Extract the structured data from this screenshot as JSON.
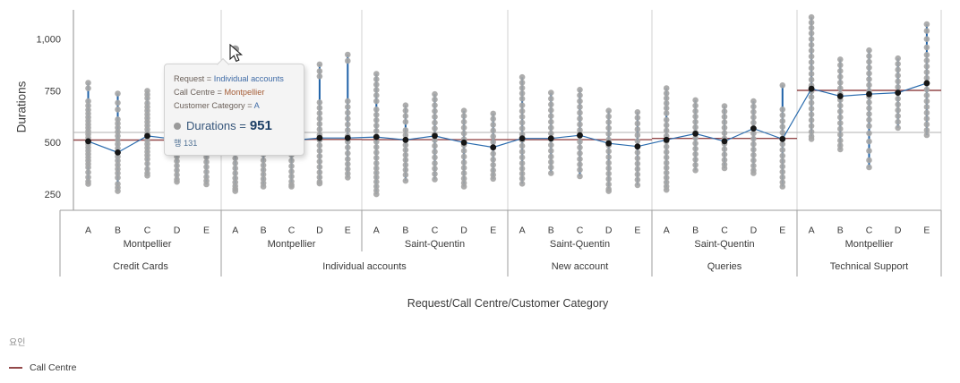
{
  "chart_data": {
    "type": "scatter",
    "variant": "hierarchical-strip-plot-with-factor-lines",
    "title": "",
    "ylabel": "Durations",
    "xlabel": "Request/Call Centre/Customer Category",
    "y_ticks": [
      250,
      500,
      750,
      1000
    ],
    "y_tick_labels": [
      "250",
      "500",
      "750",
      "1,000"
    ],
    "ylim": [
      170,
      1145
    ],
    "grid": false,
    "reference_line_value": 549,
    "hierarchy_levels": [
      "Customer Category",
      "Call Centre",
      "Request"
    ],
    "groups": [
      {
        "request": "Credit Cards",
        "call_centre": "Montpellier",
        "factor_line": 512,
        "columns": [
          {
            "category": "A",
            "mean": 506,
            "points": [
              789,
              762,
              700,
              678,
              658,
              640,
              622,
              605,
              588,
              572,
              556,
              540,
              524,
              508,
              492,
              476,
              460,
              444,
              428,
              412,
              396,
              380,
              356,
              332,
              312,
              300
            ]
          },
          {
            "category": "B",
            "mean": 452,
            "points": [
              737,
              692,
              660,
              612,
              592,
              572,
              552,
              532,
              512,
              492,
              472,
              452,
              432,
              412,
              392,
              372,
              352,
              330,
              300,
              282,
              265
            ]
          },
          {
            "category": "C",
            "mean": 532,
            "points": [
              750,
              732,
              714,
              690,
              672,
              654,
              636,
              618,
              600,
              582,
              564,
              546,
              528,
              510,
              492,
              474,
              456,
              438,
              420,
              398,
              372,
              352,
              340
            ]
          },
          {
            "category": "D",
            "mean": 515,
            "line": [
              310,
              700
            ],
            "points": [
              700,
              672,
              648,
              624,
              600,
              576,
              552,
              528,
              504,
              480,
              456,
              432,
              410,
              388,
              366,
              344,
              322,
              310
            ]
          },
          {
            "category": "E",
            "mean": 521,
            "line": [
              298,
              760
            ],
            "points": [
              760,
              730,
              700,
              670,
              640,
              612,
              586,
              560,
              534,
              508,
              482,
              456,
              430,
              406,
              382,
              358,
              334,
              315,
              298
            ]
          }
        ]
      },
      {
        "request": "Individual accounts",
        "call_centre": "Montpellier",
        "factor_line": 515,
        "columns": [
          {
            "category": "A",
            "mean": 512,
            "line": [
              265,
              700
            ],
            "points": [
              951,
              640,
              616,
              592,
              568,
              544,
              520,
              496,
              472,
              448,
              424,
              400,
              376,
              352,
              328,
              308,
              290,
              276,
              265
            ]
          },
          {
            "category": "B",
            "mean": 505,
            "line": [
              287,
              820
            ],
            "points": [
              820,
              780,
              640,
              610,
              582,
              554,
              526,
              498,
              470,
              442,
              414,
              390,
              368,
              346,
              324,
              304,
              287
            ]
          },
          {
            "category": "C",
            "mean": 510,
            "line": [
              287,
              840
            ],
            "points": [
              840,
              800,
              760,
              650,
              620,
              590,
              560,
              530,
              500,
              470,
              440,
              412,
              386,
              360,
              336,
              312,
              295,
              287
            ]
          },
          {
            "category": "D",
            "mean": 522,
            "points": [
              878,
              845,
              820,
              694,
              668,
              642,
              616,
              590,
              564,
              538,
              512,
              486,
              460,
              434,
              408,
              382,
              356,
              332,
              310,
              302
            ]
          },
          {
            "category": "E",
            "mean": 522,
            "points": [
              925,
              895,
              700,
              672,
              644,
              616,
              588,
              560,
              532,
              504,
              476,
              448,
              420,
              396,
              372,
              350,
              331
            ]
          }
        ]
      },
      {
        "request": "Individual accounts",
        "call_centre": "Saint-Quentin",
        "factor_line": 514,
        "columns": [
          {
            "category": "A",
            "mean": 527,
            "points": [
              832,
              806,
              780,
              754,
              728,
              700,
              660,
              634,
              608,
              582,
              556,
              530,
              504,
              478,
              452,
              426,
              400,
              376,
              354,
              332,
              310,
              288,
              268,
              250
            ]
          },
          {
            "category": "B",
            "mean": 513,
            "points": [
              680,
              654,
              628,
              600,
              560,
              536,
              512,
              488,
              464,
              440,
              416,
              392,
              368,
              344,
              315
            ]
          },
          {
            "category": "C",
            "mean": 532,
            "points": [
              734,
              708,
              680,
              652,
              624,
              596,
              568,
              540,
              512,
              484,
              456,
              428,
              400,
              374,
              348,
              322
            ]
          },
          {
            "category": "D",
            "mean": 500,
            "points": [
              654,
              628,
              600,
              572,
              544,
              516,
              488,
              460,
              432,
              404,
              378,
              352,
              326,
              305,
              287
            ]
          },
          {
            "category": "E",
            "mean": 477,
            "points": [
              640,
              614,
              586,
              558,
              530,
              502,
              474,
              446,
              418,
              392,
              366,
              344,
              325
            ]
          }
        ]
      },
      {
        "request": "New account",
        "call_centre": "Saint-Quentin",
        "factor_line": 514,
        "columns": [
          {
            "category": "A",
            "mean": 520,
            "points": [
              816,
              790,
              764,
              738,
              712,
              680,
              652,
              624,
              596,
              568,
              540,
              512,
              484,
              456,
              428,
              400,
              374,
              350,
              326,
              301
            ]
          },
          {
            "category": "B",
            "mean": 520,
            "points": [
              741,
              712,
              684,
              656,
              628,
              600,
              572,
              544,
              516,
              488,
              460,
              432,
              406,
              380,
              352
            ]
          },
          {
            "category": "C",
            "mean": 535,
            "points": [
              755,
              728,
              700,
              672,
              644,
              616,
              588,
              560,
              532,
              504,
              476,
              448,
              420,
              394,
              368,
              337
            ]
          },
          {
            "category": "D",
            "mean": 496,
            "points": [
              654,
              626,
              598,
              570,
              542,
              514,
              486,
              458,
              430,
              402,
              376,
              350,
              324,
              298,
              275,
              265
            ]
          },
          {
            "category": "E",
            "mean": 481,
            "points": [
              647,
              620,
              592,
              564,
              536,
              508,
              480,
              452,
              424,
              398,
              372,
              346,
              320,
              294
            ]
          }
        ]
      },
      {
        "request": "Queries",
        "call_centre": "Saint-Quentin",
        "factor_line": 520,
        "columns": [
          {
            "category": "A",
            "mean": 513,
            "points": [
              763,
              738,
              714,
              690,
              666,
              642,
              610,
              584,
              558,
              532,
              506,
              480,
              454,
              428,
              402,
              378,
              354,
              330,
              308,
              288,
              271
            ]
          },
          {
            "category": "B",
            "mean": 543,
            "points": [
              705,
              678,
              652,
              626,
              600,
              574,
              548,
              522,
              496,
              470,
              444,
              418,
              392,
              366
            ]
          },
          {
            "category": "C",
            "mean": 506,
            "points": [
              676,
              650,
              624,
              598,
              572,
              546,
              520,
              494,
              468,
              442,
              416,
              394,
              376
            ]
          },
          {
            "category": "D",
            "mean": 568,
            "points": [
              700,
              674,
              648,
              622,
              596,
              570,
              544,
              518,
              492,
              466,
              440,
              414,
              388,
              366,
              352
            ]
          },
          {
            "category": "E",
            "mean": 517,
            "points": [
              777,
              660,
              632,
              604,
              576,
              548,
              520,
              492,
              464,
              436,
              410,
              384,
              358,
              332,
              308,
              287
            ]
          }
        ]
      },
      {
        "request": "Technical Support",
        "call_centre": "Montpellier",
        "factor_line": 752,
        "columns": [
          {
            "category": "A",
            "mean": 760,
            "points": [
              1106,
              1080,
              1054,
              1028,
              1000,
              972,
              944,
              916,
              888,
              860,
              832,
              804,
              776,
              748,
              720,
              692,
              664,
              636,
              608,
              580,
              552,
              530,
              517
            ]
          },
          {
            "category": "B",
            "mean": 724,
            "points": [
              902,
              874,
              846,
              818,
              790,
              762,
              734,
              706,
              678,
              650,
              622,
              594,
              566,
              538,
              510,
              486,
              467
            ]
          },
          {
            "category": "C",
            "mean": 734,
            "points": [
              946,
              918,
              890,
              862,
              834,
              806,
              778,
              750,
              722,
              694,
              666,
              638,
              610,
              580,
              545,
              505,
              460,
              415,
              380
            ]
          },
          {
            "category": "D",
            "mean": 741,
            "points": [
              907,
              880,
              852,
              824,
              796,
              768,
              740,
              712,
              684,
              656,
              628,
              600,
              571
            ]
          },
          {
            "category": "E",
            "mean": 787,
            "points": [
              1072,
              1040,
              1000,
              960,
              924,
              896,
              868,
              840,
              812,
              784,
              756,
              728,
              700,
              672,
              644,
              616,
              588,
              560,
              536
            ]
          }
        ]
      }
    ],
    "legend_position": "bottom-left"
  },
  "colors": {
    "range_line": "#1f62a8",
    "connector_line": "#2b6cae",
    "point": "#a6a6a6",
    "mean_dot": "#161616",
    "factor_line": "#93494a",
    "reference_line": "#b2b2b2",
    "panel_gridline": "#d2d2d2",
    "axis_line": "#9e9e9e",
    "tick_text": "#3a3a3a"
  },
  "legend": {
    "title": "요인",
    "items": [
      {
        "label": "Call Centre",
        "color": "#93494a"
      }
    ]
  },
  "tooltip": {
    "rows": [
      {
        "label": "Request = ",
        "value": "Individual accounts"
      },
      {
        "label": "Call Centre = ",
        "value": "Montpellier"
      },
      {
        "label": "Customer Category = ",
        "value": "A"
      }
    ],
    "metric": {
      "label": "Durations =",
      "value": "951"
    },
    "row_ref": "행 131",
    "target": {
      "group_index": 1,
      "category": "A",
      "value": 951
    }
  }
}
